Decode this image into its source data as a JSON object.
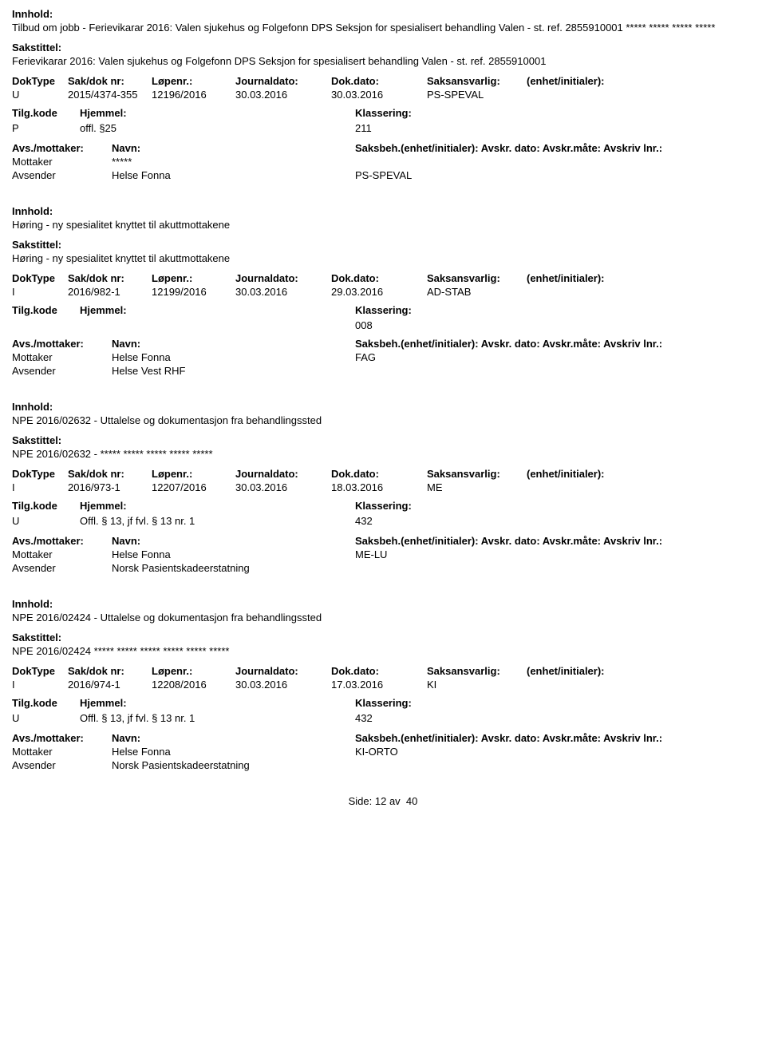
{
  "labels": {
    "innhold": "Innhold:",
    "sakstittel": "Sakstittel:",
    "doktype": "DokType",
    "sakdok": "Sak/dok nr:",
    "lopenr": "Løpenr.:",
    "journaldato": "Journaldato:",
    "dokdato": "Dok.dato:",
    "saksansvarlig": "Saksansvarlig:",
    "enhet": "(enhet/initialer):",
    "tilgkode": "Tilg.kode",
    "hjemmel": "Hjemmel:",
    "klassering": "Klassering:",
    "avsmottaker": "Avs./mottaker:",
    "navn": "Navn:",
    "saksbeh_full": "Saksbeh.(enhet/initialer): Avskr. dato:  Avskr.måte:  Avskriv lnr.:",
    "mottaker": "Mottaker",
    "avsender": "Avsender",
    "side": "Side:",
    "av": "av"
  },
  "entries": [
    {
      "innhold": "Tilbud om jobb - Ferievikarar 2016: Valen sjukehus og Folgefonn DPS Seksjon for spesialisert behandling Valen - st. ref. 2855910001 ***** ***** ***** *****",
      "sakstittel": "Ferievikarar 2016: Valen sjukehus og Folgefonn DPS Seksjon for spesialisert behandling Valen - st. ref. 2855910001",
      "doktype": "U",
      "sakdok": "2015/4374-355",
      "lopenr": "12196/2016",
      "journaldato": "30.03.2016",
      "dokdato": "30.03.2016",
      "saksansvarlig": "PS-SPEVAL",
      "tilgkode": "P",
      "hjemmel": "offl. §25",
      "klassering": "211",
      "parties": [
        {
          "role": "Mottaker",
          "name": "*****",
          "saksbeh": ""
        },
        {
          "role": "Avsender",
          "name": "Helse Fonna",
          "saksbeh": "PS-SPEVAL"
        }
      ]
    },
    {
      "innhold": "Høring - ny spesialitet knyttet til akuttmottakene",
      "sakstittel": "Høring - ny spesialitet knyttet til akuttmottakene",
      "doktype": "I",
      "sakdok": "2016/982-1",
      "lopenr": "12199/2016",
      "journaldato": "30.03.2016",
      "dokdato": "29.03.2016",
      "saksansvarlig": "AD-STAB",
      "tilgkode": "",
      "hjemmel": "",
      "klassering": "008",
      "parties": [
        {
          "role": "Mottaker",
          "name": "Helse Fonna",
          "saksbeh": "FAG"
        },
        {
          "role": "Avsender",
          "name": "Helse Vest RHF",
          "saksbeh": ""
        }
      ]
    },
    {
      "innhold": "NPE 2016/02632 -  Uttalelse og dokumentasjon fra behandlingssted",
      "sakstittel": "NPE 2016/02632 -  ***** ***** ***** ***** *****",
      "doktype": "I",
      "sakdok": "2016/973-1",
      "lopenr": "12207/2016",
      "journaldato": "30.03.2016",
      "dokdato": "18.03.2016",
      "saksansvarlig": "ME",
      "tilgkode": "U",
      "hjemmel": "Offl. § 13, jf fvl. § 13 nr. 1",
      "klassering": "432",
      "parties": [
        {
          "role": "Mottaker",
          "name": "Helse Fonna",
          "saksbeh": "ME-LU"
        },
        {
          "role": "Avsender",
          "name": "Norsk Pasientskadeerstatning",
          "saksbeh": ""
        }
      ]
    },
    {
      "innhold": "NPE 2016/02424 -  Uttalelse og dokumentasjon fra behandlingssted",
      "sakstittel": "NPE 2016/02424 ***** ***** ***** ***** ***** *****",
      "doktype": "I",
      "sakdok": "2016/974-1",
      "lopenr": "12208/2016",
      "journaldato": "30.03.2016",
      "dokdato": "17.03.2016",
      "saksansvarlig": "KI",
      "tilgkode": "U",
      "hjemmel": "Offl. § 13, jf fvl. § 13 nr. 1",
      "klassering": "432",
      "parties": [
        {
          "role": "Mottaker",
          "name": "Helse Fonna",
          "saksbeh": "KI-ORTO"
        },
        {
          "role": "Avsender",
          "name": "Norsk Pasientskadeerstatning",
          "saksbeh": ""
        }
      ]
    }
  ],
  "footer": {
    "page": "12",
    "total": "40"
  }
}
